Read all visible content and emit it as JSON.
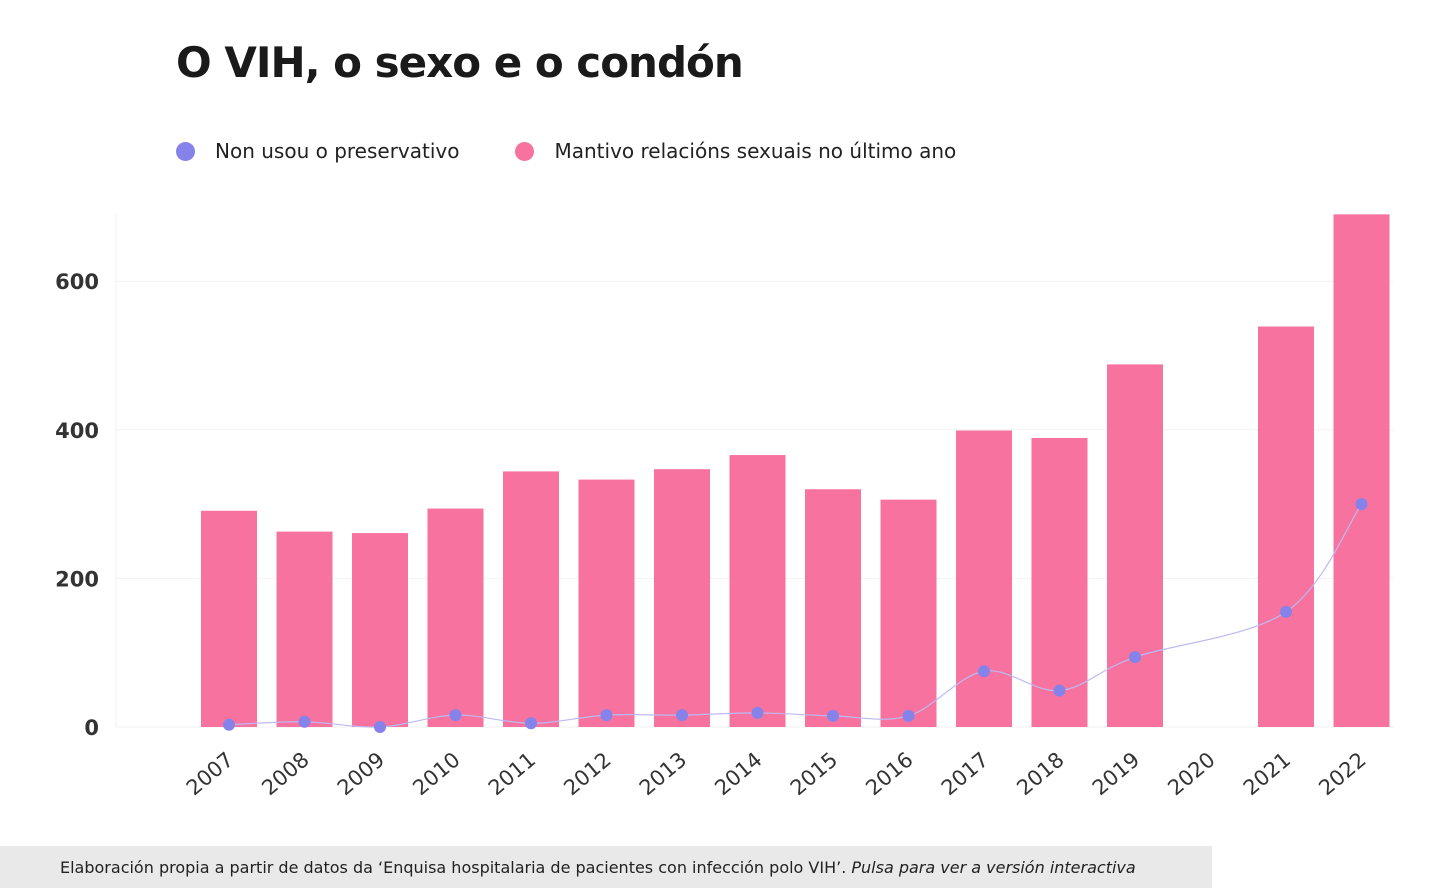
{
  "page": {
    "title": "O VIH, o sexo e o condón",
    "footer": {
      "source_text": "Elaboración propia a partir de datos da ‘Enquisa hospitalaria de pacientes con infección polo VIH’. ",
      "link_text": "Pulsa para ver a versión interactiva"
    }
  },
  "colors": {
    "bars": "#f7729f",
    "dots": "#8582ea",
    "line": "#bcbaf2",
    "grid": "#f2f2f2",
    "axis_text": "#333333"
  },
  "chart_data": {
    "type": "bar",
    "title": "O VIH, o sexo e o condón",
    "xlabel": "",
    "ylabel": "",
    "ylim": [
      0,
      700
    ],
    "yticks": [
      "0",
      "200",
      "400",
      "600"
    ],
    "grid": true,
    "legend_position": "top-left",
    "categories": [
      "2007",
      "2008",
      "2009",
      "2010",
      "2011",
      "2012",
      "2013",
      "2014",
      "2015",
      "2016",
      "2017",
      "2018",
      "2019",
      "2020",
      "2021",
      "2022"
    ],
    "series": [
      {
        "name": "Non usou o preservativo",
        "type": "line",
        "values": [
          3,
          7,
          0,
          16,
          5,
          16,
          16,
          19,
          15,
          15,
          75,
          49,
          94,
          null,
          155,
          300
        ]
      },
      {
        "name": "Mantivo relacións sexuais no último ano",
        "type": "bar",
        "values": [
          291,
          263,
          261,
          294,
          344,
          333,
          347,
          366,
          320,
          306,
          399,
          389,
          488,
          null,
          539,
          690
        ]
      }
    ]
  }
}
